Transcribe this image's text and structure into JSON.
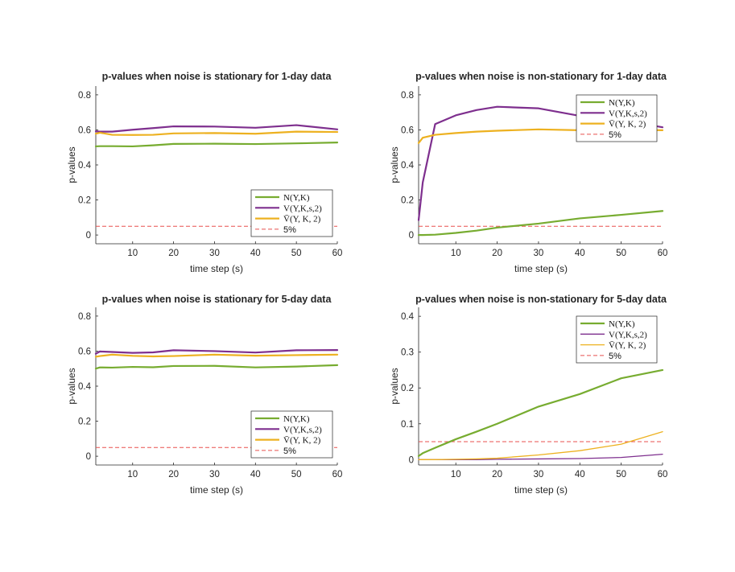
{
  "colors": {
    "N": "#77AC30",
    "V": "#7E2F8E",
    "Vbar": "#EDB120",
    "threshold": "#E8504F",
    "axis": "#262626",
    "background": "#ffffff"
  },
  "chart_data": [
    {
      "type": "line",
      "title": "p-values when noise is stationary for 1-day data",
      "xlabel": "time step (s)",
      "ylabel": "p-values",
      "xlim": [
        1,
        60
      ],
      "ylim": [
        -0.05,
        0.85
      ],
      "xticks": [
        10,
        20,
        30,
        40,
        50,
        60
      ],
      "yticks": [
        0,
        0.2,
        0.4,
        0.6,
        0.8
      ],
      "ytick_labels": [
        "0",
        "0.2",
        "0.4",
        "0.6",
        "0.8"
      ],
      "legend_position": "bottom-right",
      "x": [
        1,
        2,
        5,
        10,
        15,
        20,
        30,
        40,
        50,
        60
      ],
      "series": [
        {
          "name": "N(Y,K)",
          "color_key": "N",
          "width": 2.2,
          "values": [
            0.506,
            0.507,
            0.507,
            0.506,
            0.512,
            0.52,
            0.521,
            0.519,
            0.523,
            0.528
          ]
        },
        {
          "name": "V(Y,K,s,2)",
          "color_key": "V",
          "width": 2.2,
          "values": [
            0.592,
            0.59,
            0.59,
            0.601,
            0.61,
            0.62,
            0.619,
            0.612,
            0.627,
            0.603
          ]
        },
        {
          "name": "V̄(Y, K, 2)",
          "color_key": "Vbar",
          "width": 2.2,
          "values": [
            0.578,
            0.584,
            0.572,
            0.571,
            0.572,
            0.58,
            0.582,
            0.578,
            0.59,
            0.588
          ]
        }
      ],
      "threshold": {
        "name": "5%",
        "value": 0.05,
        "color_key": "threshold"
      }
    },
    {
      "type": "line",
      "title": "p-values when noise is non-stationary for 1-day data",
      "xlabel": "time step (s)",
      "ylabel": "p-values",
      "xlim": [
        1,
        60
      ],
      "ylim": [
        -0.05,
        0.85
      ],
      "xticks": [
        10,
        20,
        30,
        40,
        50,
        60
      ],
      "yticks": [
        0,
        0.2,
        0.4,
        0.6,
        0.8
      ],
      "ytick_labels": [
        "0",
        "0.2",
        "0.4",
        "0.6",
        "0.8"
      ],
      "legend_position": "top-right",
      "x": [
        1,
        2,
        5,
        10,
        15,
        20,
        30,
        40,
        50,
        60
      ],
      "series": [
        {
          "name": "N(Y,K)",
          "color_key": "N",
          "width": 2.2,
          "values": [
            0.0,
            0.0,
            0.002,
            0.012,
            0.025,
            0.042,
            0.065,
            0.095,
            0.115,
            0.137
          ]
        },
        {
          "name": "V(Y,K,s,2)",
          "color_key": "V",
          "width": 2.2,
          "values": [
            0.085,
            0.3,
            0.633,
            0.683,
            0.713,
            0.732,
            0.723,
            0.68,
            0.655,
            0.615
          ]
        },
        {
          "name": "V̄(Y, K, 2)",
          "color_key": "Vbar",
          "width": 2.2,
          "values": [
            0.525,
            0.555,
            0.572,
            0.582,
            0.59,
            0.595,
            0.603,
            0.598,
            0.602,
            0.598
          ]
        }
      ],
      "threshold": {
        "name": "5%",
        "value": 0.05,
        "color_key": "threshold"
      }
    },
    {
      "type": "line",
      "title": "p-values when noise is stationary for 5-day data",
      "xlabel": "time step (s)",
      "ylabel": "p-values",
      "xlim": [
        1,
        60
      ],
      "ylim": [
        -0.05,
        0.85
      ],
      "xticks": [
        10,
        20,
        30,
        40,
        50,
        60
      ],
      "yticks": [
        0,
        0.2,
        0.4,
        0.6,
        0.8
      ],
      "ytick_labels": [
        "0",
        "0.2",
        "0.4",
        "0.6",
        "0.8"
      ],
      "legend_position": "bottom-right",
      "x": [
        1,
        2,
        5,
        10,
        15,
        20,
        30,
        40,
        50,
        60
      ],
      "series": [
        {
          "name": "N(Y,K)",
          "color_key": "N",
          "width": 2.2,
          "values": [
            0.5,
            0.507,
            0.506,
            0.51,
            0.508,
            0.515,
            0.516,
            0.507,
            0.512,
            0.52
          ]
        },
        {
          "name": "V(Y,K,s,2)",
          "color_key": "V",
          "width": 2.2,
          "values": [
            0.585,
            0.598,
            0.595,
            0.59,
            0.593,
            0.605,
            0.6,
            0.592,
            0.605,
            0.606
          ]
        },
        {
          "name": "V̄(Y, K, 2)",
          "color_key": "Vbar",
          "width": 2.2,
          "values": [
            0.568,
            0.572,
            0.58,
            0.573,
            0.57,
            0.572,
            0.58,
            0.574,
            0.577,
            0.58
          ]
        }
      ],
      "threshold": {
        "name": "5%",
        "value": 0.05,
        "color_key": "threshold"
      }
    },
    {
      "type": "line",
      "title": "p-values when noise is non-stationary for 5-day data",
      "xlabel": "time step (s)",
      "ylabel": "p-values",
      "xlim": [
        1,
        60
      ],
      "ylim": [
        -0.015,
        0.425
      ],
      "xticks": [
        10,
        20,
        30,
        40,
        50,
        60
      ],
      "yticks": [
        0,
        0.1,
        0.2,
        0.3,
        0.4
      ],
      "ytick_labels": [
        "0",
        "0.1",
        "0.2",
        "0.3",
        "0.4"
      ],
      "legend_position": "top-right",
      "x": [
        1,
        2,
        5,
        10,
        15,
        20,
        30,
        40,
        50,
        60
      ],
      "series": [
        {
          "name": "N(Y,K)",
          "color_key": "N",
          "width": 2.2,
          "values": [
            0.01,
            0.018,
            0.033,
            0.057,
            0.078,
            0.1,
            0.148,
            0.183,
            0.227,
            0.25
          ]
        },
        {
          "name": "V(Y,K,s,2)",
          "color_key": "V",
          "width": 1.3,
          "values": [
            0.0,
            0.0,
            0.0,
            0.0,
            0.0,
            0.001,
            0.002,
            0.003,
            0.006,
            0.015
          ]
        },
        {
          "name": "V̄(Y, K, 2)",
          "color_key": "Vbar",
          "width": 1.3,
          "values": [
            0.0,
            0.0,
            0.0,
            0.001,
            0.002,
            0.004,
            0.013,
            0.025,
            0.043,
            0.078
          ]
        }
      ],
      "threshold": {
        "name": "5%",
        "value": 0.05,
        "color_key": "threshold"
      }
    }
  ]
}
